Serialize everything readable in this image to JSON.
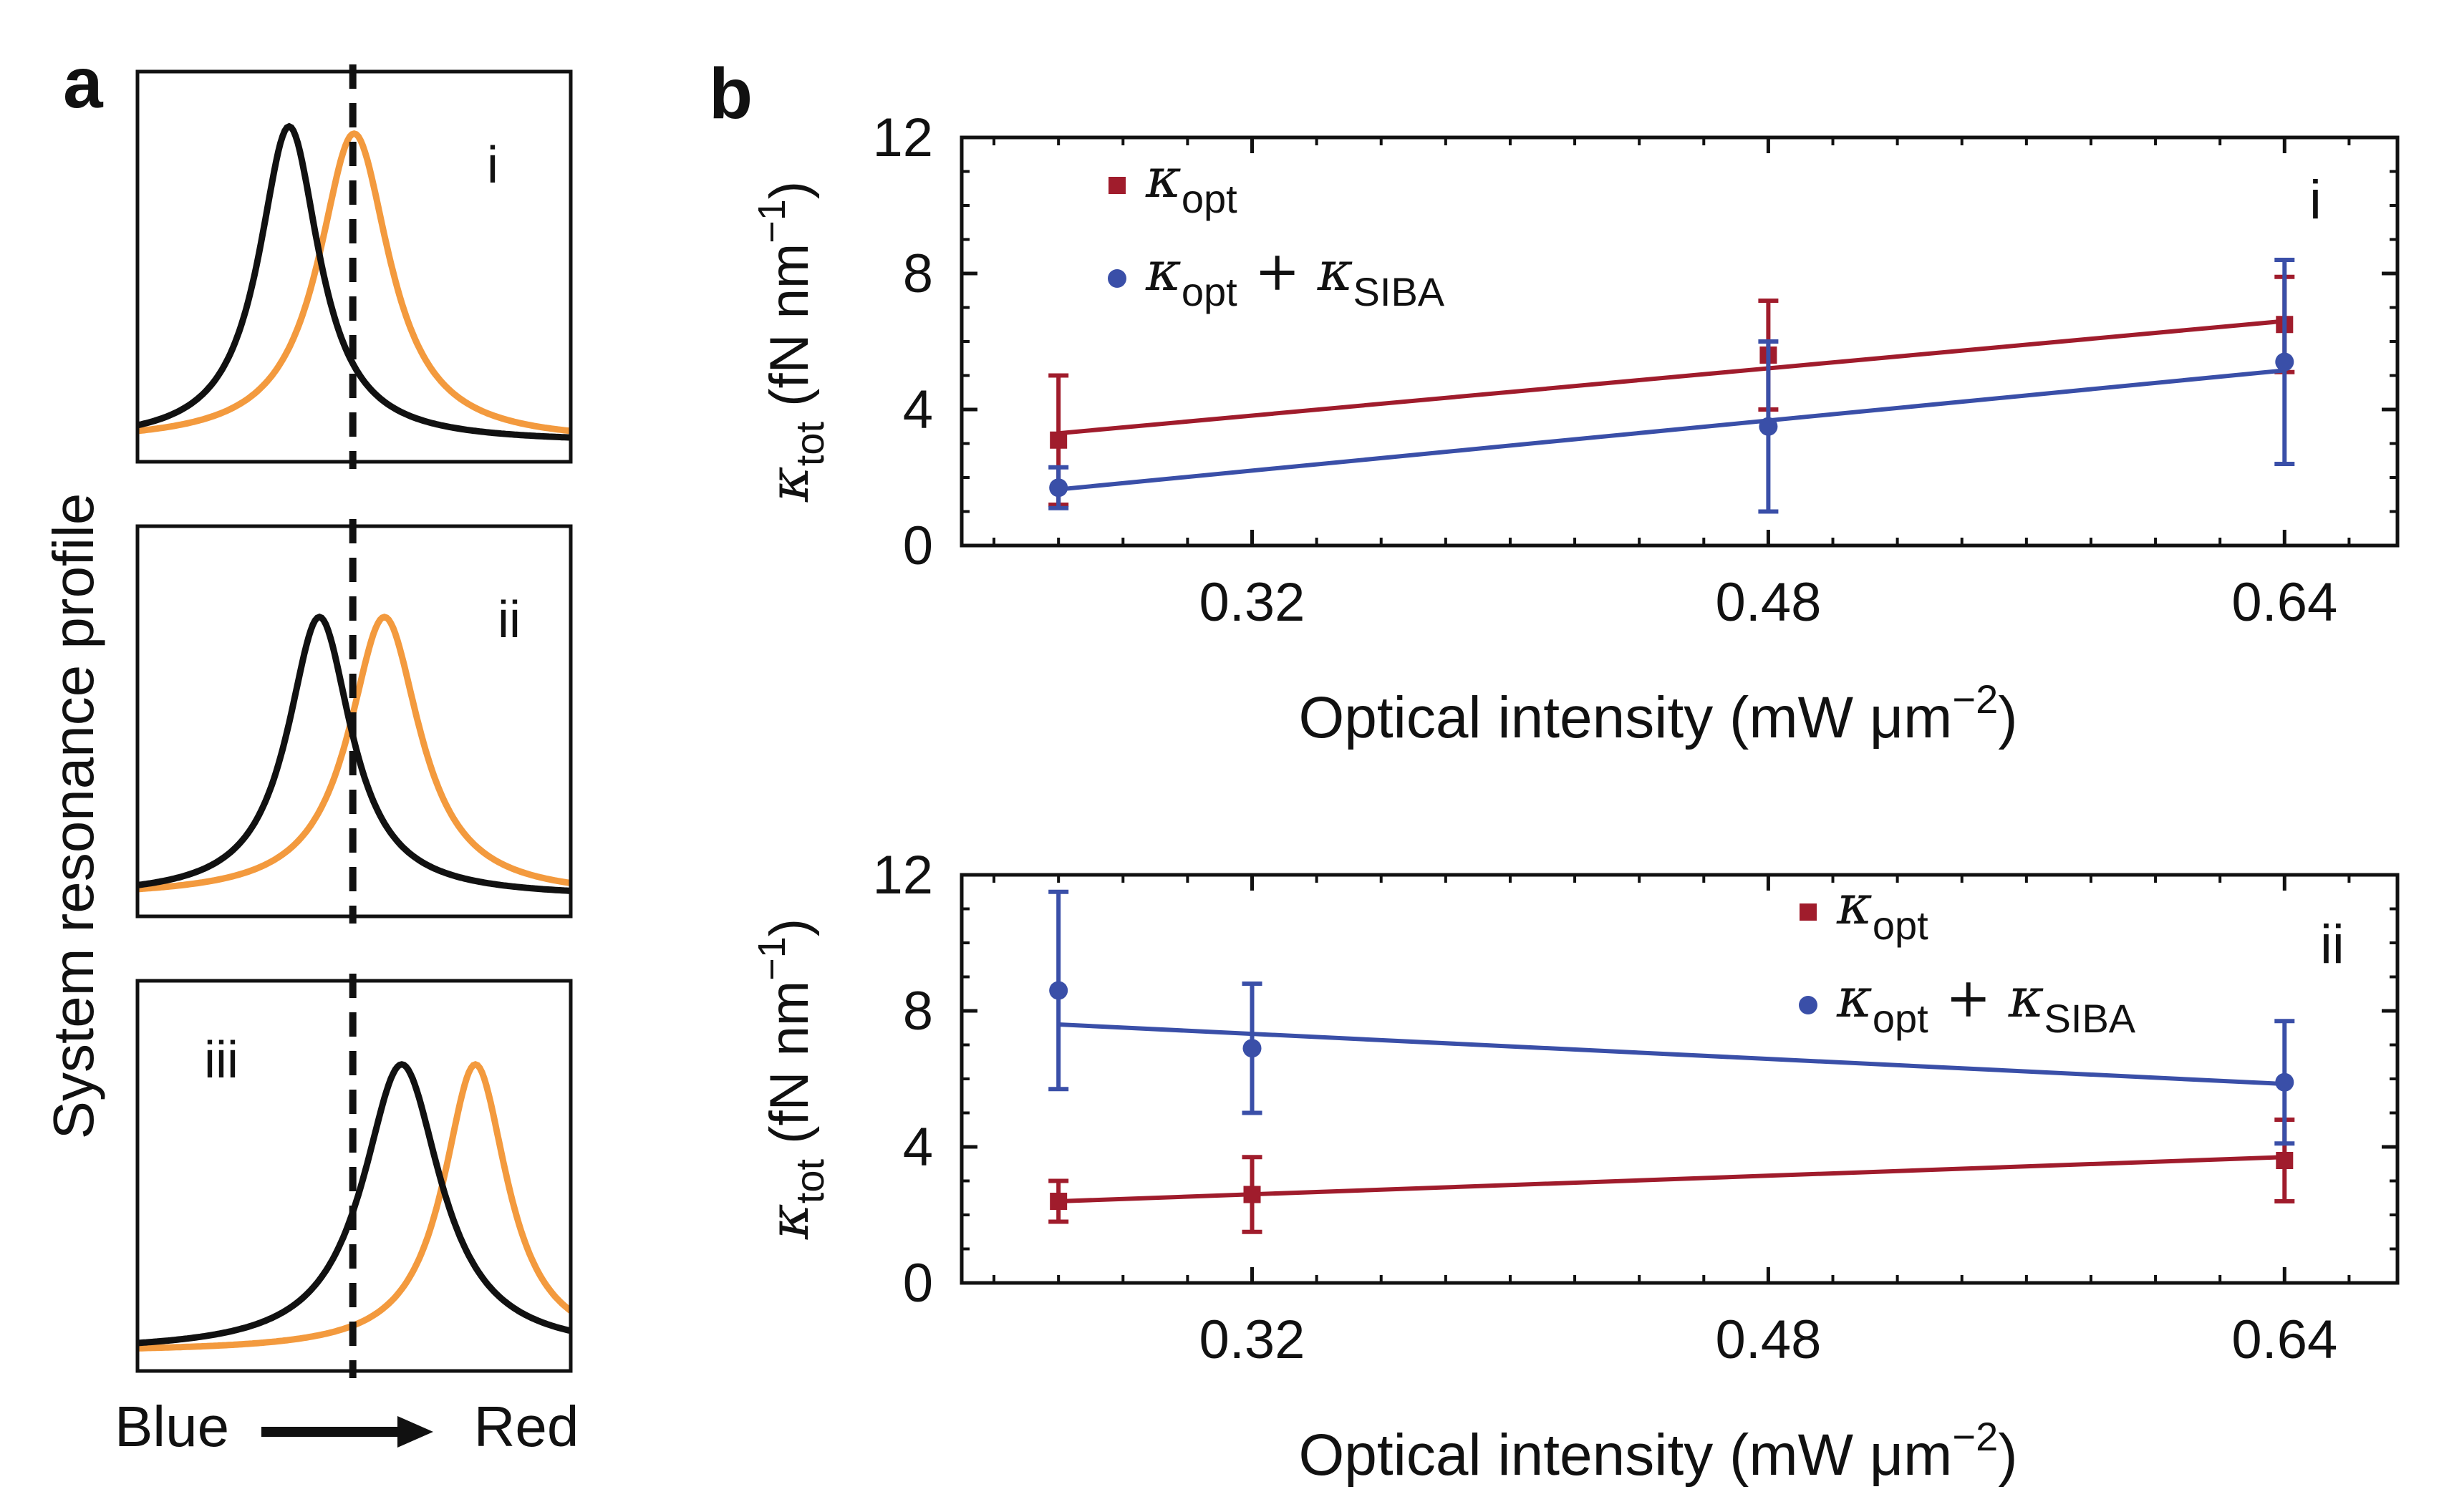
{
  "figure": {
    "panel_a": {
      "label": "a",
      "ylabel": "System resonance profile",
      "xlabel_left": "Blue",
      "xlabel_right": "Red",
      "colors": {
        "blue_word": "#1f4e79",
        "red_word": "#e8636a",
        "black_curve": "#111111",
        "orange_curve": "#f39a3e"
      },
      "subpanels": [
        {
          "id": "i",
          "label": "i",
          "black_peak": 0.35,
          "orange_peak": 0.5,
          "black_width": 0.085,
          "orange_width": 0.1,
          "black_height": 0.88,
          "orange_height": 0.86,
          "black_base": 0.0,
          "orange_base": 0.0
        },
        {
          "id": "ii",
          "label": "ii",
          "black_peak": 0.42,
          "orange_peak": 0.57,
          "black_width": 0.09,
          "orange_width": 0.1,
          "black_height": 0.78,
          "orange_height": 0.78,
          "black_base": 0.0,
          "orange_base": 0.0
        },
        {
          "id": "iii",
          "label": "iii",
          "black_peak": 0.61,
          "orange_peak": 0.78,
          "black_width": 0.11,
          "orange_width": 0.09,
          "black_height": 0.8,
          "orange_height": 0.8,
          "black_base": 0.0,
          "orange_base": 0.0
        }
      ]
    },
    "panel_b": {
      "label": "b"
    }
  },
  "chart_data": [
    {
      "type": "scatter",
      "id": "b-i",
      "panel_label": "i",
      "xlabel": "Optical intensity (mW μm",
      "xlabel_sup": "−2",
      "xlabel_end": ")",
      "ylabel_symbol": "κ",
      "ylabel_sub": "tot",
      "ylabel_rest": " (fN nm",
      "ylabel_sup": "−1",
      "ylabel_end": ")",
      "xlim": [
        0.23,
        0.675
      ],
      "ylim": [
        0,
        12
      ],
      "xticks": [
        0.32,
        0.48,
        0.64
      ],
      "xticklabels": [
        "0.32",
        "0.48",
        "0.64"
      ],
      "yticks": [
        0,
        4,
        8,
        12
      ],
      "yticklabels": [
        "0",
        "4",
        "8",
        "12"
      ],
      "legend_position": "top-left",
      "series": [
        {
          "name": "κ_opt",
          "legend_symbol": "κ",
          "legend_sub": "opt",
          "legend_extra": "",
          "marker": "square",
          "color": "#a01c2c",
          "x": [
            0.26,
            0.48,
            0.64
          ],
          "y": [
            3.1,
            5.6,
            6.5
          ],
          "err": [
            1.9,
            1.6,
            1.4
          ],
          "fit": [
            3.3,
            6.6
          ]
        },
        {
          "name": "κ_opt + κ_SIBA",
          "legend_symbol": "κ",
          "legend_sub": "opt",
          "legend_extra_symbol": " + κ",
          "legend_extra_sub": "SIBA",
          "marker": "circle",
          "color": "#3a4fa8",
          "x": [
            0.26,
            0.48,
            0.64
          ],
          "y": [
            1.7,
            3.5,
            5.4
          ],
          "err": [
            0.6,
            2.5,
            3.0
          ],
          "fit": [
            1.65,
            5.15
          ]
        }
      ]
    },
    {
      "type": "scatter",
      "id": "b-ii",
      "panel_label": "ii",
      "xlabel": "Optical intensity (mW μm",
      "xlabel_sup": "−2",
      "xlabel_end": ")",
      "ylabel_symbol": "κ",
      "ylabel_sub": "tot",
      "ylabel_rest": " (fN nm",
      "ylabel_sup": "−1",
      "ylabel_end": ")",
      "xlim": [
        0.23,
        0.675
      ],
      "ylim": [
        0,
        12
      ],
      "xticks": [
        0.32,
        0.48,
        0.64
      ],
      "xticklabels": [
        "0.32",
        "0.48",
        "0.64"
      ],
      "yticks": [
        0,
        4,
        8,
        12
      ],
      "yticklabels": [
        "0",
        "4",
        "8",
        "12"
      ],
      "legend_position": "top-center",
      "series": [
        {
          "name": "κ_opt",
          "legend_symbol": "κ",
          "legend_sub": "opt",
          "marker": "square",
          "color": "#a01c2c",
          "x": [
            0.26,
            0.32,
            0.64
          ],
          "y": [
            2.4,
            2.6,
            3.6
          ],
          "err": [
            0.6,
            1.1,
            1.2
          ],
          "fit": [
            2.4,
            3.7
          ]
        },
        {
          "name": "κ_opt + κ_SIBA",
          "legend_symbol": "κ",
          "legend_sub": "opt",
          "legend_extra_symbol": " + κ",
          "legend_extra_sub": "SIBA",
          "marker": "circle",
          "color": "#3a4fa8",
          "x": [
            0.26,
            0.32,
            0.64
          ],
          "y": [
            8.6,
            6.9,
            5.9
          ],
          "err": [
            2.9,
            1.9,
            1.8
          ],
          "fit": [
            7.6,
            5.85
          ]
        }
      ]
    }
  ]
}
